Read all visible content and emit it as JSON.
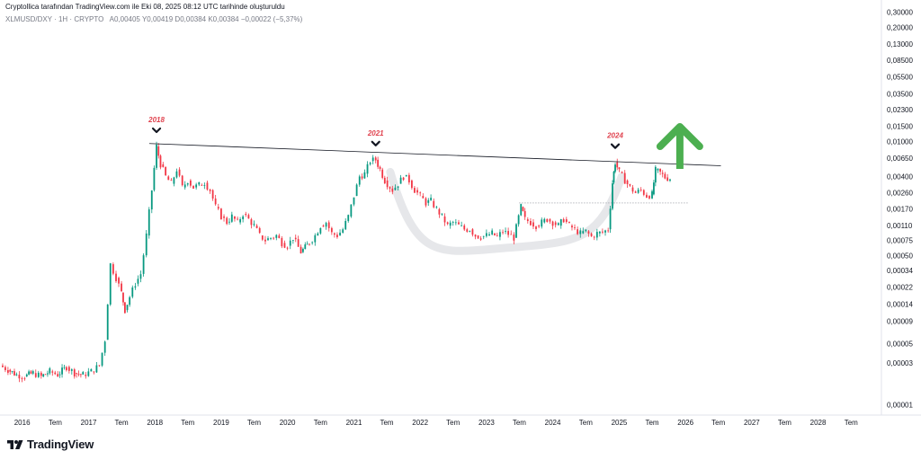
{
  "header": {
    "caption": "Cryptollica tarafından TradingView.com ile Eki 08, 2025 08:12 UTC tarihinde oluşturuldu",
    "ticker": "XLMUSD/DXY · 1H · CRYPTO",
    "ohlc": "A0,00405  Y0,00419  D0,00384  K0,00384  −0,00022 (−5,37%)"
  },
  "brand": {
    "name": "TradingView"
  },
  "chart_data": {
    "type": "candlestick",
    "y_scale": "log",
    "ylim": [
      8e-06,
      0.34
    ],
    "y_ticks": [
      "0,30000",
      "0,20000",
      "0,13000",
      "0,08500",
      "0,05500",
      "0,03500",
      "0,02300",
      "0,01500",
      "0,01000",
      "0,00650",
      "0,00400",
      "0,00260",
      "0,00170",
      "0,00110",
      "0,00075",
      "0,00050",
      "0,00034",
      "0,00022",
      "0,00014",
      "0,00009",
      "0,00005",
      "0,00003",
      "0,00001"
    ],
    "y_tick_values": [
      0.3,
      0.2,
      0.13,
      0.085,
      0.055,
      0.035,
      0.023,
      0.015,
      0.01,
      0.0065,
      0.004,
      0.0026,
      0.0017,
      0.0011,
      0.00075,
      0.0005,
      0.00034,
      0.00022,
      0.00014,
      9e-05,
      5e-05,
      3e-05,
      1e-05
    ],
    "x_range": [
      "2015-09-01",
      "2028-12-15"
    ],
    "x_ticks": [
      {
        "label": "2016",
        "date": "2016-01-01"
      },
      {
        "label": "Tem",
        "date": "2016-07-01"
      },
      {
        "label": "2017",
        "date": "2017-01-01"
      },
      {
        "label": "Tem",
        "date": "2017-07-01"
      },
      {
        "label": "2018",
        "date": "2018-01-01"
      },
      {
        "label": "Tem",
        "date": "2018-07-01"
      },
      {
        "label": "2019",
        "date": "2019-01-01"
      },
      {
        "label": "Tem",
        "date": "2019-07-01"
      },
      {
        "label": "2020",
        "date": "2020-01-01"
      },
      {
        "label": "Tem",
        "date": "2020-07-01"
      },
      {
        "label": "2021",
        "date": "2021-01-01"
      },
      {
        "label": "Tem",
        "date": "2021-07-01"
      },
      {
        "label": "2022",
        "date": "2022-01-01"
      },
      {
        "label": "Tem",
        "date": "2022-07-01"
      },
      {
        "label": "2023",
        "date": "2023-01-01"
      },
      {
        "label": "Tem",
        "date": "2023-07-01"
      },
      {
        "label": "2024",
        "date": "2024-01-01"
      },
      {
        "label": "Tem",
        "date": "2024-07-01"
      },
      {
        "label": "2025",
        "date": "2025-01-01"
      },
      {
        "label": "Tem",
        "date": "2025-07-01"
      },
      {
        "label": "2026",
        "date": "2026-01-01"
      },
      {
        "label": "Tem",
        "date": "2026-07-01"
      },
      {
        "label": "2027",
        "date": "2027-01-01"
      },
      {
        "label": "Tem",
        "date": "2027-07-01"
      },
      {
        "label": "2028",
        "date": "2028-01-01"
      },
      {
        "label": "Tem",
        "date": "2028-07-01"
      }
    ],
    "series": [
      {
        "values": [
          {
            "d": "2015-09-01",
            "c": 2.8e-05
          },
          {
            "d": "2015-10-15",
            "c": 2.5e-05
          },
          {
            "d": "2015-12-01",
            "c": 2.2e-05
          },
          {
            "d": "2016-01-15",
            "c": 2.1e-05
          },
          {
            "d": "2016-03-01",
            "c": 2.3e-05
          },
          {
            "d": "2016-04-15",
            "c": 2.1e-05
          },
          {
            "d": "2016-06-01",
            "c": 2.4e-05
          },
          {
            "d": "2016-07-15",
            "c": 2.2e-05
          },
          {
            "d": "2016-09-01",
            "c": 2.7e-05
          },
          {
            "d": "2016-10-15",
            "c": 2.3e-05
          },
          {
            "d": "2016-12-01",
            "c": 2.2e-05
          },
          {
            "d": "2017-01-15",
            "c": 2.4e-05
          },
          {
            "d": "2017-03-01",
            "c": 2.8e-05
          },
          {
            "d": "2017-04-01",
            "c": 5.5e-05
          },
          {
            "d": "2017-05-01",
            "c": 0.0004
          },
          {
            "d": "2017-06-01",
            "c": 0.00028
          },
          {
            "d": "2017-07-01",
            "c": 0.00019
          },
          {
            "d": "2017-07-20",
            "c": 0.00012
          },
          {
            "d": "2017-08-15",
            "c": 0.00017
          },
          {
            "d": "2017-09-15",
            "c": 0.00024
          },
          {
            "d": "2017-10-15",
            "c": 0.00031
          },
          {
            "d": "2017-11-15",
            "c": 0.00085
          },
          {
            "d": "2017-12-15",
            "c": 0.0028
          },
          {
            "d": "2018-01-10",
            "c": 0.0088
          },
          {
            "d": "2018-02-01",
            "c": 0.0055
          },
          {
            "d": "2018-03-01",
            "c": 0.004
          },
          {
            "d": "2018-04-01",
            "c": 0.0033
          },
          {
            "d": "2018-05-01",
            "c": 0.0048
          },
          {
            "d": "2018-06-01",
            "c": 0.003
          },
          {
            "d": "2018-07-01",
            "c": 0.0036
          },
          {
            "d": "2018-08-01",
            "c": 0.003
          },
          {
            "d": "2018-09-01",
            "c": 0.0032
          },
          {
            "d": "2018-10-01",
            "c": 0.0034
          },
          {
            "d": "2018-11-01",
            "c": 0.0028
          },
          {
            "d": "2018-12-01",
            "c": 0.0018
          },
          {
            "d": "2019-01-01",
            "c": 0.0014
          },
          {
            "d": "2019-02-01",
            "c": 0.0012
          },
          {
            "d": "2019-03-01",
            "c": 0.0014
          },
          {
            "d": "2019-04-01",
            "c": 0.0012
          },
          {
            "d": "2019-05-01",
            "c": 0.0015
          },
          {
            "d": "2019-06-01",
            "c": 0.0013
          },
          {
            "d": "2019-07-01",
            "c": 0.0011
          },
          {
            "d": "2019-08-01",
            "c": 0.00085
          },
          {
            "d": "2019-09-01",
            "c": 0.00075
          },
          {
            "d": "2019-10-01",
            "c": 0.0008
          },
          {
            "d": "2019-11-01",
            "c": 0.00085
          },
          {
            "d": "2019-12-01",
            "c": 0.0007
          },
          {
            "d": "2020-01-01",
            "c": 0.00065
          },
          {
            "d": "2020-02-01",
            "c": 0.0008
          },
          {
            "d": "2020-03-15",
            "c": 0.00055
          },
          {
            "d": "2020-05-01",
            "c": 0.0007
          },
          {
            "d": "2020-06-01",
            "c": 0.00085
          },
          {
            "d": "2020-07-01",
            "c": 0.0011
          },
          {
            "d": "2020-08-01",
            "c": 0.0012
          },
          {
            "d": "2020-09-01",
            "c": 0.0009
          },
          {
            "d": "2020-10-01",
            "c": 0.00085
          },
          {
            "d": "2020-11-01",
            "c": 0.001
          },
          {
            "d": "2020-12-01",
            "c": 0.0014
          },
          {
            "d": "2021-01-01",
            "c": 0.0024
          },
          {
            "d": "2021-02-01",
            "c": 0.004
          },
          {
            "d": "2021-03-01",
            "c": 0.0043
          },
          {
            "d": "2021-04-01",
            "c": 0.006
          },
          {
            "d": "2021-05-01",
            "c": 0.0062
          },
          {
            "d": "2021-05-25",
            "c": 0.0048
          },
          {
            "d": "2021-06-20",
            "c": 0.0036
          },
          {
            "d": "2021-08-01",
            "c": 0.0028
          },
          {
            "d": "2021-09-01",
            "c": 0.0033
          },
          {
            "d": "2021-10-01",
            "c": 0.004
          },
          {
            "d": "2021-11-01",
            "c": 0.0036
          },
          {
            "d": "2021-12-01",
            "c": 0.0028
          },
          {
            "d": "2022-01-01",
            "c": 0.0024
          },
          {
            "d": "2022-02-01",
            "c": 0.002
          },
          {
            "d": "2022-03-01",
            "c": 0.0021
          },
          {
            "d": "2022-04-01",
            "c": 0.0017
          },
          {
            "d": "2022-05-01",
            "c": 0.0014
          },
          {
            "d": "2022-06-01",
            "c": 0.0011
          },
          {
            "d": "2022-07-01",
            "c": 0.0012
          },
          {
            "d": "2022-08-01",
            "c": 0.0011
          },
          {
            "d": "2022-09-01",
            "c": 0.001
          },
          {
            "d": "2022-10-01",
            "c": 0.001
          },
          {
            "d": "2022-11-01",
            "c": 0.00085
          },
          {
            "d": "2022-12-01",
            "c": 0.00082
          },
          {
            "d": "2023-01-01",
            "c": 0.00085
          },
          {
            "d": "2023-02-01",
            "c": 0.0009
          },
          {
            "d": "2023-03-01",
            "c": 0.00082
          },
          {
            "d": "2023-04-01",
            "c": 0.00095
          },
          {
            "d": "2023-05-01",
            "c": 0.00088
          },
          {
            "d": "2023-06-01",
            "c": 0.0008
          },
          {
            "d": "2023-07-10",
            "c": 0.0018
          },
          {
            "d": "2023-08-01",
            "c": 0.0013
          },
          {
            "d": "2023-09-01",
            "c": 0.0012
          },
          {
            "d": "2023-10-01",
            "c": 0.0011
          },
          {
            "d": "2023-11-01",
            "c": 0.0012
          },
          {
            "d": "2023-12-01",
            "c": 0.0013
          },
          {
            "d": "2024-01-01",
            "c": 0.0012
          },
          {
            "d": "2024-02-01",
            "c": 0.0011
          },
          {
            "d": "2024-03-01",
            "c": 0.0013
          },
          {
            "d": "2024-04-01",
            "c": 0.0011
          },
          {
            "d": "2024-05-01",
            "c": 0.001
          },
          {
            "d": "2024-06-01",
            "c": 0.0009
          },
          {
            "d": "2024-07-01",
            "c": 0.00095
          },
          {
            "d": "2024-08-01",
            "c": 0.00082
          },
          {
            "d": "2024-09-01",
            "c": 0.0009
          },
          {
            "d": "2024-10-01",
            "c": 0.00092
          },
          {
            "d": "2024-11-01",
            "c": 0.001
          },
          {
            "d": "2024-11-25",
            "c": 0.0034
          },
          {
            "d": "2024-12-10",
            "c": 0.0058
          },
          {
            "d": "2025-01-01",
            "c": 0.0045
          },
          {
            "d": "2025-02-01",
            "c": 0.0036
          },
          {
            "d": "2025-03-01",
            "c": 0.003
          },
          {
            "d": "2025-04-01",
            "c": 0.0026
          },
          {
            "d": "2025-05-01",
            "c": 0.0028
          },
          {
            "d": "2025-06-01",
            "c": 0.0024
          },
          {
            "d": "2025-07-01",
            "c": 0.0025
          },
          {
            "d": "2025-07-20",
            "c": 0.0047
          },
          {
            "d": "2025-08-15",
            "c": 0.0044
          },
          {
            "d": "2025-09-10",
            "c": 0.0039
          },
          {
            "d": "2025-10-08",
            "c": 0.0038
          }
        ]
      }
    ],
    "annotations": [
      {
        "label": "2018",
        "date": "2018-01-10"
      },
      {
        "label": "2021",
        "date": "2021-05-01"
      },
      {
        "label": "2024",
        "date": "2024-12-10"
      }
    ],
    "trendline": [
      {
        "d": "2017-12-01",
        "v": 0.0095
      },
      {
        "d": "2026-07-15",
        "v": 0.0053
      }
    ],
    "support_line": {
      "from": "2023-07-01",
      "to": "2026-01-15",
      "v": 0.002
    },
    "arc": {
      "from": "2021-07-20",
      "bottom": "2023-05-15",
      "to": "2025-01-15",
      "start_v": 0.0045,
      "bottom_v": 0.00062,
      "end_v": 0.004
    },
    "arrow": {
      "date": "2025-12-01",
      "direction": "up",
      "color": "#4caf50"
    },
    "colors": {
      "up": "#089981",
      "down": "#f23645",
      "annotation": "#e0434f",
      "line": "#131722",
      "arrow": "#4caf50"
    }
  }
}
